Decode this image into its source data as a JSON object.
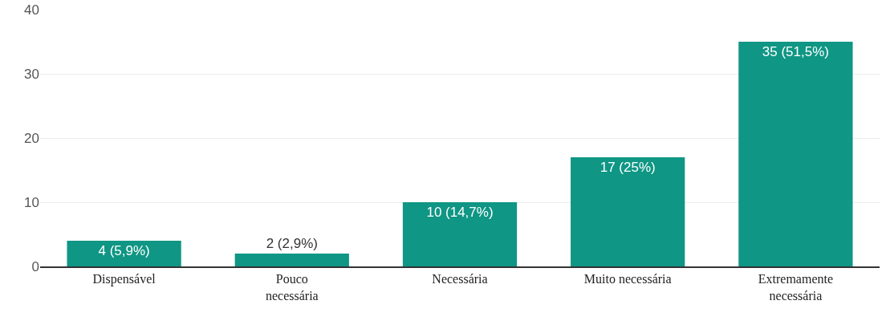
{
  "chart_data": {
    "type": "bar",
    "categories": [
      "Dispensável",
      "Pouco\nnecessária",
      "Necessária",
      "Muito necessária",
      "Extremamente\nnecessária"
    ],
    "values": [
      4,
      2,
      10,
      17,
      35
    ],
    "value_labels": [
      "4 (5,9%)",
      "2 (2,9%)",
      "10 (14,7%)",
      "17 (25%)",
      "35 (51,5%)"
    ],
    "color": "#0f9684",
    "ylim": [
      0,
      40
    ],
    "yticks": [
      0,
      10,
      20,
      30,
      40
    ],
    "grid": "y"
  }
}
